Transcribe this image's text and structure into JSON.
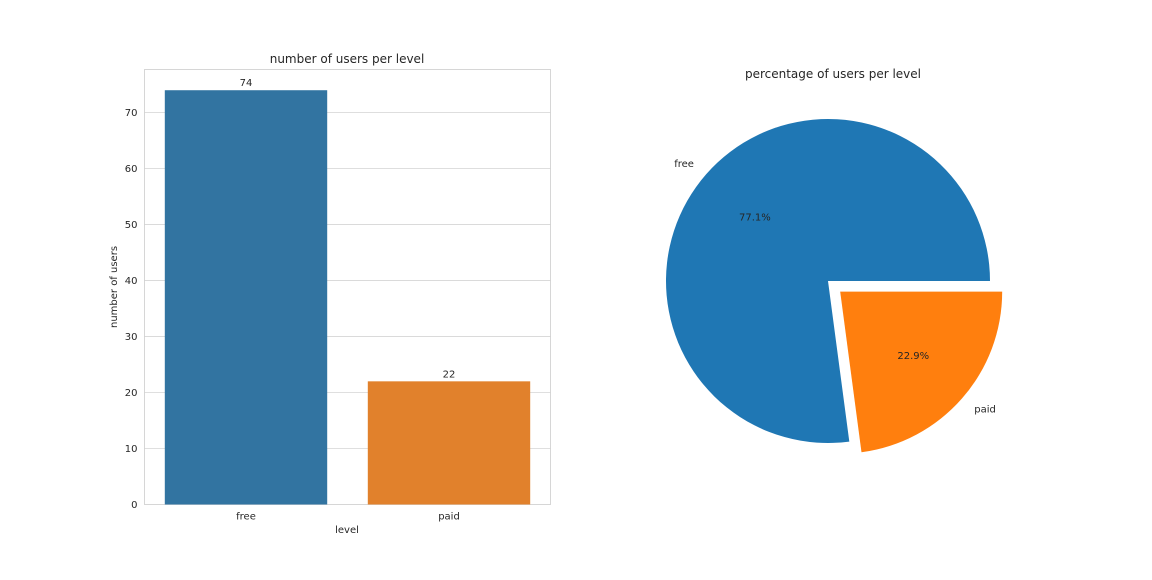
{
  "chart_data": [
    {
      "type": "bar",
      "title": "number of users per level",
      "xlabel": "level",
      "ylabel": "number of users",
      "categories": [
        "free",
        "paid"
      ],
      "values": [
        74,
        22
      ],
      "value_labels": [
        "74",
        "22"
      ],
      "colors": [
        "#3274a1",
        "#e1812c"
      ],
      "ylim": [
        0,
        77.7
      ],
      "yticks": [
        0,
        10,
        20,
        30,
        40,
        50,
        60,
        70
      ],
      "ytick_labels": [
        "0",
        "10",
        "20",
        "30",
        "40",
        "50",
        "60",
        "70"
      ],
      "grid": true
    },
    {
      "type": "pie",
      "title": "percentage of users per level",
      "labels": [
        "free",
        "paid"
      ],
      "values": [
        77.1,
        22.9
      ],
      "pct_labels": [
        "77.1%",
        "22.9%"
      ],
      "colors": [
        "#1f77b4",
        "#ff7f0e"
      ],
      "explode": [
        0,
        0.1
      ]
    }
  ]
}
